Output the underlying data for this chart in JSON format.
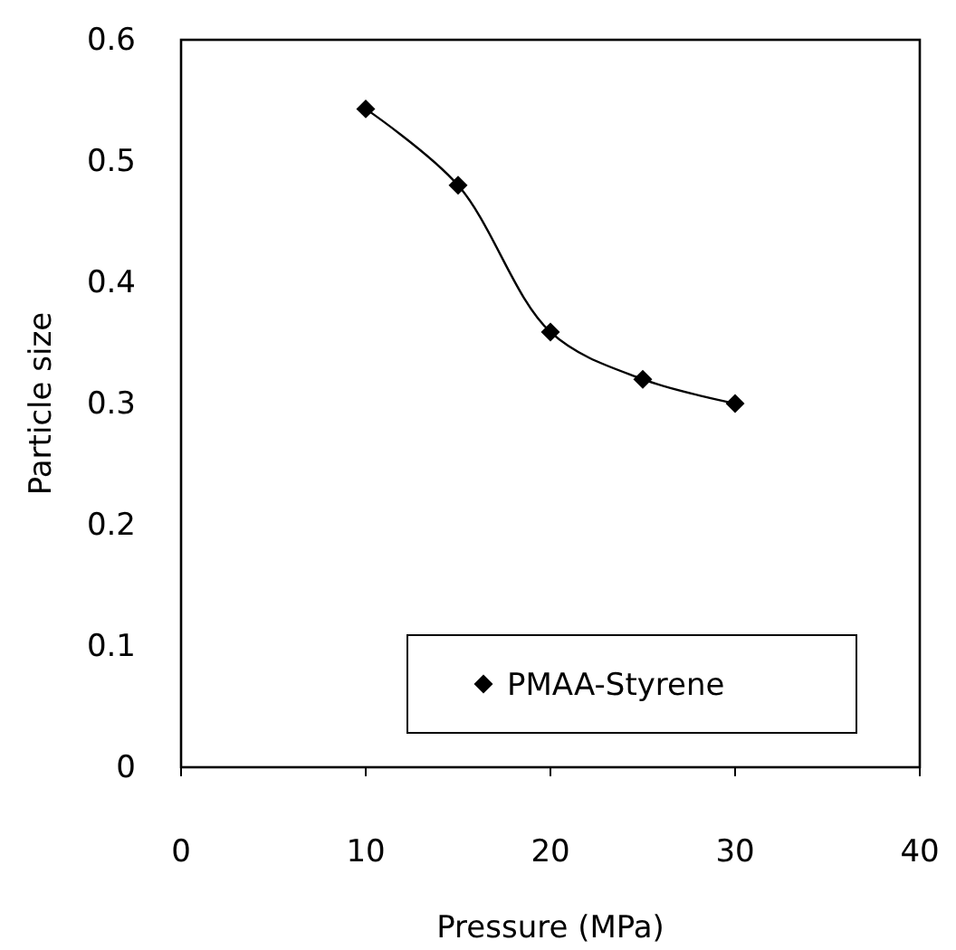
{
  "chart_data": {
    "type": "line",
    "xlabel": "Pressure (MPa)",
    "ylabel": "Particle size",
    "x": [
      10,
      15,
      20,
      25,
      30
    ],
    "series": [
      {
        "name": "PMAA-Styrene",
        "color": "#000000",
        "values": [
          0.543,
          0.48,
          0.359,
          0.32,
          0.3
        ]
      }
    ],
    "xlim": [
      0,
      40
    ],
    "xticks": [
      0,
      10,
      20,
      30,
      40
    ],
    "ylim": [
      0,
      0.6
    ],
    "yticks": [
      0,
      0.1,
      0.2,
      0.3,
      0.4,
      0.5,
      0.6
    ],
    "grid": false,
    "legend": "bottom right",
    "marker": "diamond",
    "line_style": "solid"
  }
}
